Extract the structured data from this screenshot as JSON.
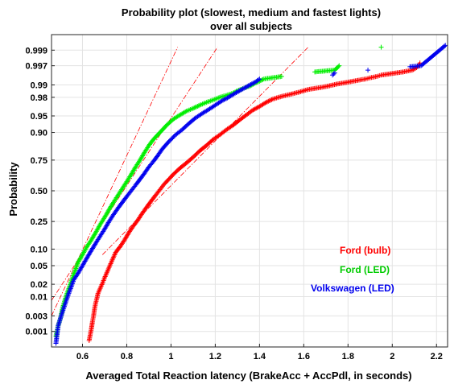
{
  "chart_data": {
    "type": "scatter",
    "title": [
      "Probability plot (slowest, medium and fastest lights)",
      "over all subjects"
    ],
    "xlabel": "Averaged Total Reaction latency (BrakeAcc + AccPdl, in seconds)",
    "ylabel": "Probability",
    "xlim": [
      0.46,
      2.25
    ],
    "y_scale": "normal-probability",
    "ylim": [
      0.0003,
      0.9997
    ],
    "x_ticks": [
      0.6,
      0.8,
      1,
      1.2,
      1.4,
      1.6,
      1.8,
      2,
      2.2
    ],
    "x_tick_labels": [
      "0.6",
      "0.8",
      "1",
      "1.2",
      "1.4",
      "1.6",
      "1.8",
      "2",
      "2.2"
    ],
    "y_ticks": [
      0.001,
      0.003,
      0.01,
      0.02,
      0.05,
      0.1,
      0.25,
      0.5,
      0.75,
      0.9,
      0.95,
      0.98,
      0.99,
      0.997,
      0.999
    ],
    "y_tick_labels": [
      "0.001",
      "0.003",
      "0.01",
      "0.02",
      "0.05",
      "0.10",
      "0.25",
      "0.50",
      "0.75",
      "0.90",
      "0.95",
      "0.98",
      "0.99",
      "0.997",
      "0.999"
    ],
    "grid": true,
    "legend_position": "bottom-right",
    "series": [
      {
        "name": "Ford (bulb)",
        "color": "#ff0000",
        "marker": "plus",
        "points": [
          [
            0.63,
            0.0005
          ],
          [
            0.64,
            0.0012
          ],
          [
            0.645,
            0.002
          ],
          [
            0.65,
            0.003
          ],
          [
            0.655,
            0.005
          ],
          [
            0.66,
            0.007
          ],
          [
            0.665,
            0.009
          ],
          [
            0.67,
            0.012
          ],
          [
            0.68,
            0.016
          ],
          [
            0.69,
            0.021
          ],
          [
            0.7,
            0.028
          ],
          [
            0.71,
            0.036
          ],
          [
            0.72,
            0.046
          ],
          [
            0.73,
            0.058
          ],
          [
            0.74,
            0.072
          ],
          [
            0.75,
            0.088
          ],
          [
            0.77,
            0.11
          ],
          [
            0.79,
            0.14
          ],
          [
            0.81,
            0.18
          ],
          [
            0.83,
            0.22
          ],
          [
            0.85,
            0.26
          ],
          [
            0.87,
            0.31
          ],
          [
            0.89,
            0.36
          ],
          [
            0.91,
            0.41
          ],
          [
            0.93,
            0.46
          ],
          [
            0.95,
            0.51
          ],
          [
            0.97,
            0.56
          ],
          [
            0.99,
            0.6
          ],
          [
            1.01,
            0.64
          ],
          [
            1.04,
            0.69
          ],
          [
            1.07,
            0.73
          ],
          [
            1.1,
            0.77
          ],
          [
            1.13,
            0.81
          ],
          [
            1.16,
            0.84
          ],
          [
            1.19,
            0.87
          ],
          [
            1.22,
            0.89
          ],
          [
            1.25,
            0.91
          ],
          [
            1.28,
            0.925
          ],
          [
            1.31,
            0.94
          ],
          [
            1.34,
            0.952
          ],
          [
            1.37,
            0.962
          ],
          [
            1.4,
            0.968
          ],
          [
            1.43,
            0.974
          ],
          [
            1.46,
            0.978
          ],
          [
            1.5,
            0.981
          ],
          [
            1.54,
            0.983
          ],
          [
            1.58,
            0.985
          ],
          [
            1.62,
            0.987
          ],
          [
            1.66,
            0.988
          ],
          [
            1.7,
            0.989
          ],
          [
            1.75,
            0.9905
          ],
          [
            1.8,
            0.9915
          ],
          [
            1.85,
            0.9925
          ],
          [
            1.88,
            0.993
          ],
          [
            1.9,
            0.9935
          ],
          [
            1.93,
            0.994
          ],
          [
            1.95,
            0.9945
          ],
          [
            2.05,
            0.9955
          ],
          [
            2.09,
            0.996
          ],
          [
            2.1,
            0.9963
          ],
          [
            2.11,
            0.9966
          ],
          [
            2.12,
            0.997
          ],
          [
            2.125,
            0.9975
          ]
        ]
      },
      {
        "name": "Ford (LED)",
        "color": "#00ee00",
        "marker": "plus",
        "points": [
          [
            0.48,
            0.0007
          ],
          [
            0.49,
            0.0015
          ],
          [
            0.5,
            0.0025
          ],
          [
            0.505,
            0.0035
          ],
          [
            0.51,
            0.005
          ],
          [
            0.52,
            0.008
          ],
          [
            0.53,
            0.012
          ],
          [
            0.54,
            0.017
          ],
          [
            0.55,
            0.024
          ],
          [
            0.56,
            0.033
          ],
          [
            0.57,
            0.044
          ],
          [
            0.58,
            0.058
          ],
          [
            0.6,
            0.08
          ],
          [
            0.62,
            0.11
          ],
          [
            0.64,
            0.14
          ],
          [
            0.66,
            0.18
          ],
          [
            0.68,
            0.23
          ],
          [
            0.7,
            0.28
          ],
          [
            0.72,
            0.34
          ],
          [
            0.74,
            0.4
          ],
          [
            0.76,
            0.46
          ],
          [
            0.78,
            0.52
          ],
          [
            0.8,
            0.58
          ],
          [
            0.82,
            0.64
          ],
          [
            0.84,
            0.7
          ],
          [
            0.86,
            0.75
          ],
          [
            0.88,
            0.8
          ],
          [
            0.9,
            0.84
          ],
          [
            0.92,
            0.87
          ],
          [
            0.95,
            0.9
          ],
          [
            0.98,
            0.925
          ],
          [
            1.01,
            0.942
          ],
          [
            1.04,
            0.952
          ],
          [
            1.07,
            0.96
          ],
          [
            1.1,
            0.965
          ],
          [
            1.13,
            0.97
          ],
          [
            1.16,
            0.974
          ],
          [
            1.19,
            0.977
          ],
          [
            1.22,
            0.98
          ],
          [
            1.25,
            0.982
          ],
          [
            1.28,
            0.984
          ],
          [
            1.3,
            0.986
          ],
          [
            1.33,
            0.988
          ],
          [
            1.36,
            0.9895
          ],
          [
            1.38,
            0.991
          ],
          [
            1.4,
            0.992
          ],
          [
            1.42,
            0.993
          ],
          [
            1.5,
            0.994
          ],
          [
            1.65,
            0.9955
          ],
          [
            1.74,
            0.996
          ],
          [
            1.76,
            0.997
          ],
          [
            1.95,
            0.9992
          ]
        ]
      },
      {
        "name": "Volkswagen (LED)",
        "color": "#0000ee",
        "marker": "plus",
        "points": [
          [
            0.48,
            0.0004
          ],
          [
            0.49,
            0.0015
          ],
          [
            0.5,
            0.0025
          ],
          [
            0.51,
            0.004
          ],
          [
            0.52,
            0.006
          ],
          [
            0.53,
            0.009
          ],
          [
            0.54,
            0.013
          ],
          [
            0.55,
            0.018
          ],
          [
            0.56,
            0.025
          ],
          [
            0.58,
            0.035
          ],
          [
            0.6,
            0.05
          ],
          [
            0.62,
            0.07
          ],
          [
            0.64,
            0.095
          ],
          [
            0.66,
            0.125
          ],
          [
            0.68,
            0.16
          ],
          [
            0.7,
            0.2
          ],
          [
            0.72,
            0.25
          ],
          [
            0.74,
            0.3
          ],
          [
            0.76,
            0.35
          ],
          [
            0.78,
            0.4
          ],
          [
            0.8,
            0.45
          ],
          [
            0.82,
            0.5
          ],
          [
            0.84,
            0.55
          ],
          [
            0.86,
            0.6
          ],
          [
            0.88,
            0.65
          ],
          [
            0.9,
            0.7
          ],
          [
            0.92,
            0.74
          ],
          [
            0.94,
            0.78
          ],
          [
            0.96,
            0.82
          ],
          [
            0.99,
            0.86
          ],
          [
            1.02,
            0.89
          ],
          [
            1.05,
            0.91
          ],
          [
            1.08,
            0.93
          ],
          [
            1.11,
            0.945
          ],
          [
            1.14,
            0.955
          ],
          [
            1.17,
            0.963
          ],
          [
            1.2,
            0.97
          ],
          [
            1.23,
            0.976
          ],
          [
            1.26,
            0.98
          ],
          [
            1.29,
            0.984
          ],
          [
            1.32,
            0.987
          ],
          [
            1.35,
            0.9895
          ],
          [
            1.38,
            0.9915
          ],
          [
            1.4,
            0.993
          ],
          [
            1.73,
            0.9945
          ],
          [
            1.74,
            0.9952
          ],
          [
            1.89,
            0.996
          ],
          [
            2.08,
            0.9968
          ],
          [
            2.13,
            0.997
          ],
          [
            2.24,
            0.9993
          ]
        ]
      }
    ],
    "reference_lines": [
      {
        "color": "#ff0000",
        "style": "dash-dot",
        "points": [
          [
            0.69,
            0.08
          ],
          [
            1.62,
            0.9992
          ]
        ]
      },
      {
        "color": "#ff0000",
        "style": "dash-dot",
        "points": [
          [
            0.46,
            0.008
          ],
          [
            1.21,
            0.9992
          ]
        ]
      },
      {
        "color": "#ff0000",
        "style": "dash-dot",
        "points": [
          [
            0.46,
            0.003
          ],
          [
            1.03,
            0.9992
          ]
        ]
      }
    ]
  }
}
